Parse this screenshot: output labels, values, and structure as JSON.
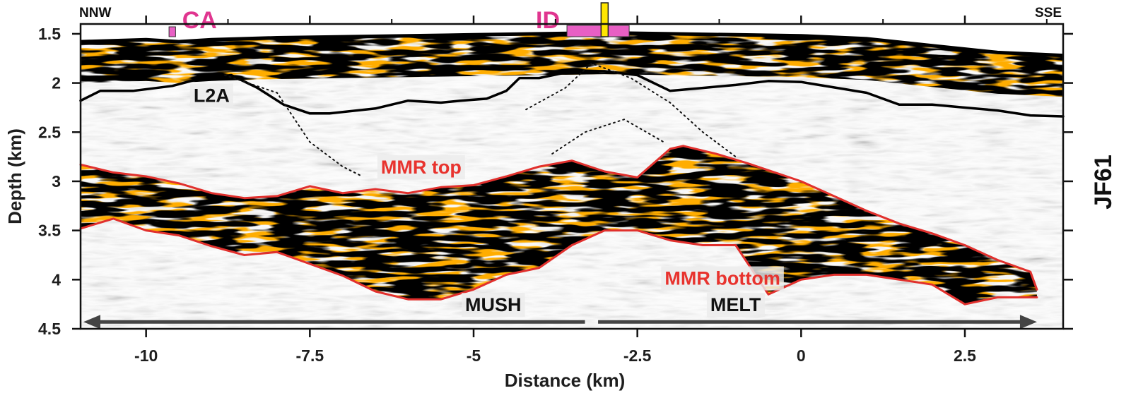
{
  "chart_data": {
    "type": "seismic-section",
    "xlabel": "Distance (km)",
    "ylabel": "Depth (km)",
    "panel_label": "JF61",
    "xlim": [
      -11,
      4
    ],
    "ylim": [
      1.4,
      4.5
    ],
    "y_inverted": true,
    "x_ticks": [
      -10,
      -7.5,
      -5,
      -2.5,
      0,
      2.5
    ],
    "x_tick_labels": [
      "-10",
      "-7.5",
      "-5",
      "-2.5",
      "0",
      "2.5"
    ],
    "y_ticks": [
      1.5,
      2,
      2.5,
      3,
      3.5,
      4,
      4.5
    ],
    "y_tick_labels": [
      "1.5",
      "2",
      "2.5",
      "3",
      "3.5",
      "4",
      "4.5"
    ],
    "direction_labels": {
      "left": "NNW",
      "right": "SSE"
    },
    "markers": [
      {
        "label": "CA",
        "x": -9.6,
        "width": 0.1,
        "color": "#e85fc4"
      },
      {
        "label": "ID",
        "x": -3.1,
        "width": 0.95,
        "color": "#e85fc4"
      }
    ],
    "vent_marker": {
      "x": -3.0,
      "color": "#ffe600"
    },
    "seafloor": {
      "x": [
        -11,
        -10,
        -9.5,
        -9,
        -8,
        -7,
        -6,
        -5,
        -4,
        -3,
        -2,
        -1,
        0,
        1,
        2,
        3,
        4
      ],
      "y": [
        1.58,
        1.56,
        1.58,
        1.56,
        1.54,
        1.53,
        1.52,
        1.51,
        1.5,
        1.49,
        1.5,
        1.51,
        1.52,
        1.55,
        1.62,
        1.69,
        1.72
      ]
    },
    "series": [
      {
        "name": "L2A",
        "style": "solid-black",
        "x": [
          -11,
          -10.7,
          -10.2,
          -9.6,
          -9.2,
          -8.7,
          -8.3,
          -7.9,
          -7.5,
          -7.2,
          -6.5,
          -6,
          -5.5,
          -5.2,
          -4.8,
          -4.5,
          -4.3,
          -4,
          -3.5,
          -3,
          -2.5,
          -2,
          -1.5,
          -1,
          -0.5,
          0,
          1,
          1.5,
          2,
          2.5,
          3,
          3.5,
          4
        ],
        "y": [
          2.18,
          2.08,
          2.08,
          2.03,
          1.96,
          1.92,
          2.05,
          2.22,
          2.31,
          2.31,
          2.26,
          2.18,
          2.2,
          2.18,
          2.16,
          2.08,
          1.95,
          1.95,
          1.88,
          1.88,
          1.92,
          2.08,
          2.05,
          2.02,
          1.98,
          1.99,
          2.1,
          2.22,
          2.22,
          2.25,
          2.28,
          2.33,
          2.34
        ]
      },
      {
        "name": "MMR top",
        "style": "solid-red",
        "x": [
          -11,
          -10.5,
          -10,
          -9.5,
          -9,
          -8.5,
          -8,
          -7.5,
          -7,
          -6.5,
          -6,
          -5.5,
          -5,
          -4.5,
          -4,
          -3.5,
          -3,
          -2.5,
          -2,
          -1.8,
          -1.3,
          -0.8,
          0,
          0.5,
          1,
          1.5,
          2,
          2.5,
          3,
          3.5,
          3.6
        ],
        "y": [
          2.83,
          2.91,
          2.95,
          3.02,
          3.12,
          3.17,
          3.15,
          3.05,
          3.12,
          3.08,
          3.12,
          3.06,
          3.04,
          2.95,
          2.85,
          2.79,
          2.9,
          2.96,
          2.67,
          2.64,
          2.72,
          2.82,
          3.0,
          3.15,
          3.3,
          3.43,
          3.53,
          3.65,
          3.8,
          3.92,
          4.1
        ]
      },
      {
        "name": "MMR bottom",
        "style": "solid-red",
        "x": [
          -11,
          -10.5,
          -10,
          -9.5,
          -9,
          -8.5,
          -8,
          -7.5,
          -7,
          -6.5,
          -6,
          -5.5,
          -5,
          -4.5,
          -4,
          -3.5,
          -3,
          -2.5,
          -2,
          -1.5,
          -1,
          -0.5,
          0,
          0.5,
          1,
          1.5,
          2,
          2.5,
          3,
          3.6
        ],
        "y": [
          3.48,
          3.38,
          3.5,
          3.55,
          3.66,
          3.75,
          3.72,
          3.84,
          3.96,
          4.12,
          4.2,
          4.2,
          4.1,
          3.95,
          3.88,
          3.65,
          3.5,
          3.5,
          3.6,
          3.65,
          3.65,
          4.15,
          4.0,
          3.95,
          3.95,
          4.0,
          4.05,
          4.25,
          4.18,
          4.18
        ]
      },
      {
        "name": "",
        "style": "dotted-black",
        "x": [
          -8.8,
          -8,
          -7.5,
          -7,
          -6.7
        ],
        "y": [
          1.92,
          2.1,
          2.6,
          2.85,
          2.95
        ]
      },
      {
        "name": "",
        "style": "dotted-black",
        "x": [
          -4.2,
          -3.6,
          -3.2,
          -2.6,
          -2,
          -1.5,
          -1
        ],
        "y": [
          2.27,
          2.05,
          1.8,
          1.95,
          2.2,
          2.5,
          2.75
        ]
      },
      {
        "name": "",
        "style": "dotted-black",
        "x": [
          -3.8,
          -3.3,
          -2.7,
          -2.1
        ],
        "y": [
          2.72,
          2.5,
          2.37,
          2.6
        ]
      }
    ],
    "annotations": [
      {
        "text": "L2A",
        "x": -9.0,
        "y": 2.12,
        "color": "dark"
      },
      {
        "text": "MMR top",
        "x": -5.8,
        "y": 2.85,
        "color": "red"
      },
      {
        "text": "MMR bottom",
        "x": -1.2,
        "y": 3.98,
        "color": "red"
      },
      {
        "text": "MUSH",
        "x": -4.7,
        "y": 4.25,
        "color": "dark"
      },
      {
        "text": "MELT",
        "x": -1.0,
        "y": 4.25,
        "color": "dark"
      }
    ],
    "span_arrows": [
      {
        "from": -3.3,
        "to": -11,
        "y": 4.43
      },
      {
        "from": -3.1,
        "to": 3.6,
        "y": 4.43
      }
    ]
  }
}
